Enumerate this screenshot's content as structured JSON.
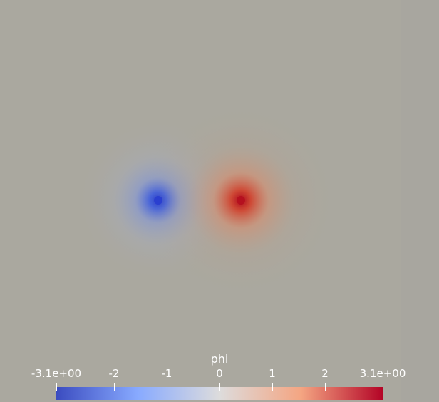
{
  "colorbar": {
    "title": "phi",
    "range": [
      -3.1,
      3.1
    ],
    "ticks": [
      {
        "value": -3.1,
        "label": "-3.1e+00"
      },
      {
        "value": -2,
        "label": "-2"
      },
      {
        "value": -1,
        "label": "-1"
      },
      {
        "value": 0,
        "label": "0"
      },
      {
        "value": 1,
        "label": "1"
      },
      {
        "value": 2,
        "label": "2"
      },
      {
        "value": 3.1,
        "label": "3.1e+00"
      }
    ],
    "colormap": [
      "#3b4cc0",
      "#88aaff",
      "#dddcdc",
      "#f4a582",
      "#b40426"
    ]
  },
  "field": {
    "background_color": "#aaa89f",
    "sources": [
      {
        "name": "negative-source",
        "value": -3.1
      },
      {
        "name": "positive-source",
        "value": 3.1
      }
    ]
  }
}
